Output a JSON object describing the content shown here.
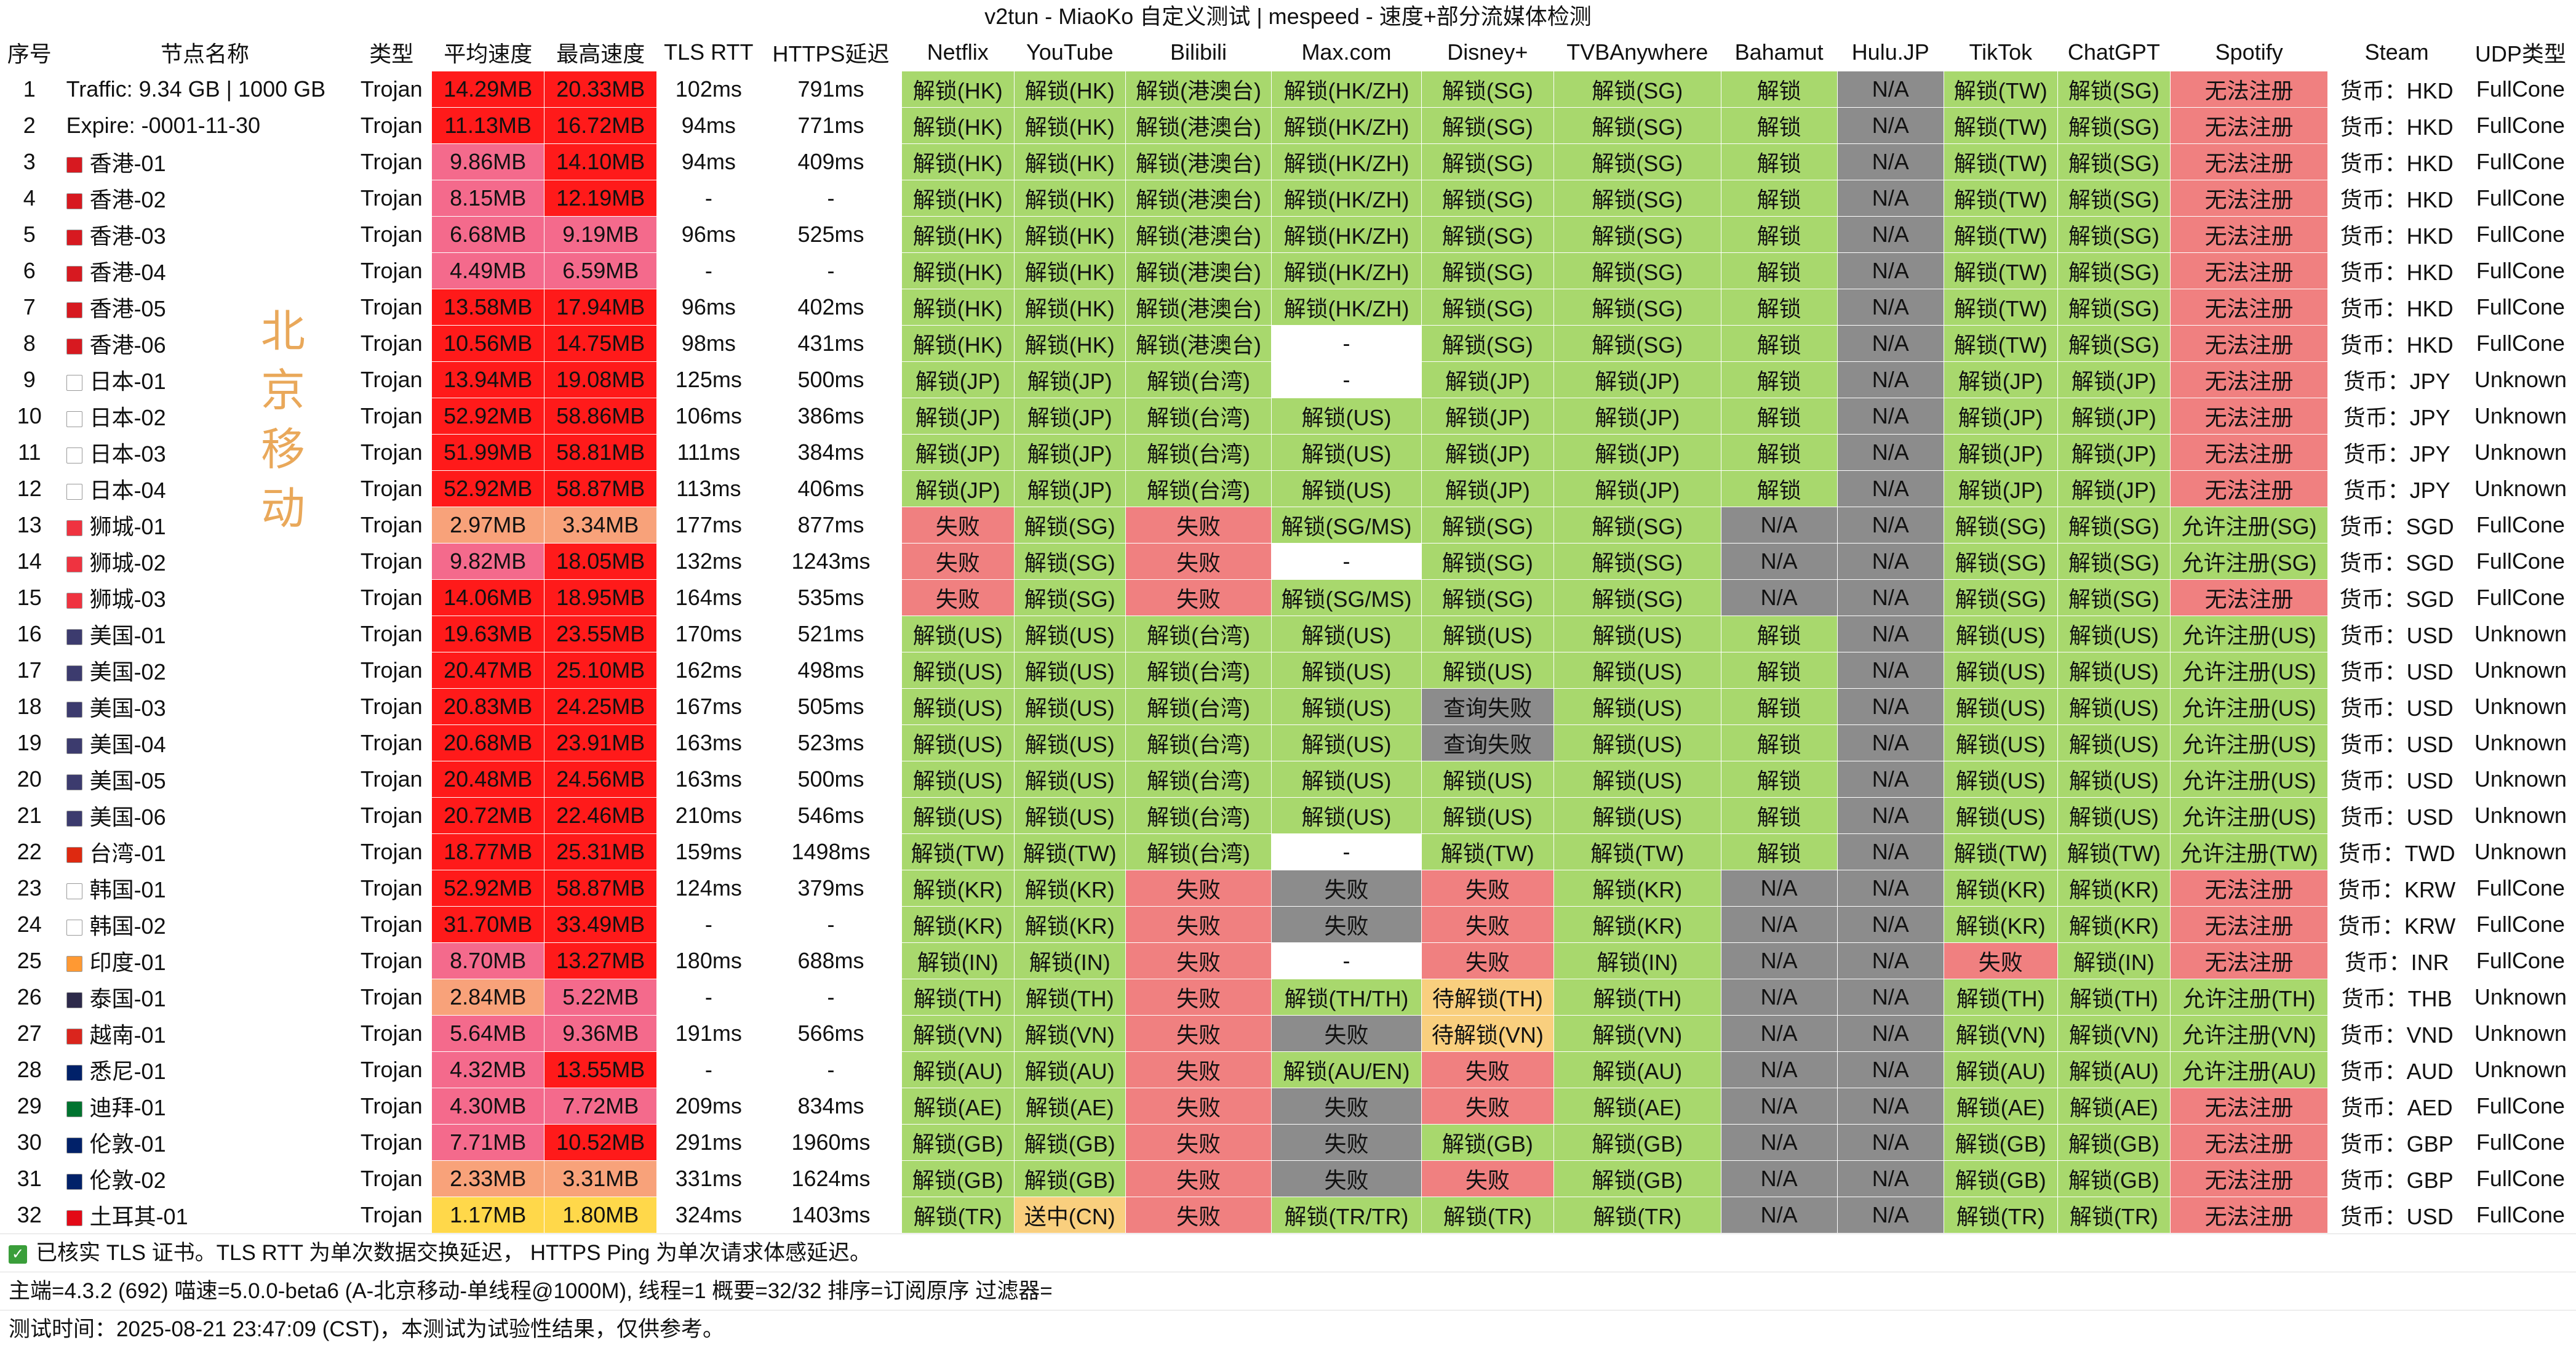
{
  "title": "v2tun - MiaoKo 自定义测试 | mespeed - 速度+部分流媒体检测",
  "columns": [
    "序号",
    "节点名称",
    "类型",
    "平均速度",
    "最高速度",
    "TLS RTT",
    "HTTPS延迟",
    "Netflix",
    "YouTube",
    "Bilibili",
    "Max.com",
    "Disney+",
    "TVBAnywhere",
    "Bahamut",
    "Hulu.JP",
    "TikTok",
    "ChatGPT",
    "Spotify",
    "Steam",
    "UDP类型"
  ],
  "overlay_text": [
    "北",
    "京",
    "移",
    "动"
  ],
  "rows": [
    [
      "1",
      "Traffic: 9.34 GB | 1000 GB",
      "Trojan",
      "14.29MB",
      "20.33MB",
      "102ms",
      "791ms",
      "解锁(HK)",
      "解锁(HK)",
      "解锁(港澳台)",
      "解锁(HK/ZH)",
      "解锁(SG)",
      "解锁(SG)",
      "解锁",
      "N/A",
      "解锁(TW)",
      "解锁(SG)",
      "无法注册",
      "货币：HKD",
      "FullCone"
    ],
    [
      "2",
      "Expire: -0001-11-30",
      "Trojan",
      "11.13MB",
      "16.72MB",
      "94ms",
      "771ms",
      "解锁(HK)",
      "解锁(HK)",
      "解锁(港澳台)",
      "解锁(HK/ZH)",
      "解锁(SG)",
      "解锁(SG)",
      "解锁",
      "N/A",
      "解锁(TW)",
      "解锁(SG)",
      "无法注册",
      "货币：HKD",
      "FullCone"
    ],
    [
      "3",
      "香港-01",
      "Trojan",
      "9.86MB",
      "14.10MB",
      "94ms",
      "409ms",
      "解锁(HK)",
      "解锁(HK)",
      "解锁(港澳台)",
      "解锁(HK/ZH)",
      "解锁(SG)",
      "解锁(SG)",
      "解锁",
      "N/A",
      "解锁(TW)",
      "解锁(SG)",
      "无法注册",
      "货币：HKD",
      "FullCone"
    ],
    [
      "4",
      "香港-02",
      "Trojan",
      "8.15MB",
      "12.19MB",
      "-",
      "-",
      "解锁(HK)",
      "解锁(HK)",
      "解锁(港澳台)",
      "解锁(HK/ZH)",
      "解锁(SG)",
      "解锁(SG)",
      "解锁",
      "N/A",
      "解锁(TW)",
      "解锁(SG)",
      "无法注册",
      "货币：HKD",
      "FullCone"
    ],
    [
      "5",
      "香港-03",
      "Trojan",
      "6.68MB",
      "9.19MB",
      "96ms",
      "525ms",
      "解锁(HK)",
      "解锁(HK)",
      "解锁(港澳台)",
      "解锁(HK/ZH)",
      "解锁(SG)",
      "解锁(SG)",
      "解锁",
      "N/A",
      "解锁(TW)",
      "解锁(SG)",
      "无法注册",
      "货币：HKD",
      "FullCone"
    ],
    [
      "6",
      "香港-04",
      "Trojan",
      "4.49MB",
      "6.59MB",
      "-",
      "-",
      "解锁(HK)",
      "解锁(HK)",
      "解锁(港澳台)",
      "解锁(HK/ZH)",
      "解锁(SG)",
      "解锁(SG)",
      "解锁",
      "N/A",
      "解锁(TW)",
      "解锁(SG)",
      "无法注册",
      "货币：HKD",
      "FullCone"
    ],
    [
      "7",
      "香港-05",
      "Trojan",
      "13.58MB",
      "17.94MB",
      "96ms",
      "402ms",
      "解锁(HK)",
      "解锁(HK)",
      "解锁(港澳台)",
      "解锁(HK/ZH)",
      "解锁(SG)",
      "解锁(SG)",
      "解锁",
      "N/A",
      "解锁(TW)",
      "解锁(SG)",
      "无法注册",
      "货币：HKD",
      "FullCone"
    ],
    [
      "8",
      "香港-06",
      "Trojan",
      "10.56MB",
      "14.75MB",
      "98ms",
      "431ms",
      "解锁(HK)",
      "解锁(HK)",
      "解锁(港澳台)",
      "-",
      "解锁(SG)",
      "解锁(SG)",
      "解锁",
      "N/A",
      "解锁(TW)",
      "解锁(SG)",
      "无法注册",
      "货币：HKD",
      "FullCone"
    ],
    [
      "9",
      "日本-01",
      "Trojan",
      "13.94MB",
      "19.08MB",
      "125ms",
      "500ms",
      "解锁(JP)",
      "解锁(JP)",
      "解锁(台湾)",
      "-",
      "解锁(JP)",
      "解锁(JP)",
      "解锁",
      "N/A",
      "解锁(JP)",
      "解锁(JP)",
      "无法注册",
      "货币：JPY",
      "Unknown"
    ],
    [
      "10",
      "日本-02",
      "Trojan",
      "52.92MB",
      "58.86MB",
      "106ms",
      "386ms",
      "解锁(JP)",
      "解锁(JP)",
      "解锁(台湾)",
      "解锁(US)",
      "解锁(JP)",
      "解锁(JP)",
      "解锁",
      "N/A",
      "解锁(JP)",
      "解锁(JP)",
      "无法注册",
      "货币：JPY",
      "Unknown"
    ],
    [
      "11",
      "日本-03",
      "Trojan",
      "51.99MB",
      "58.81MB",
      "111ms",
      "384ms",
      "解锁(JP)",
      "解锁(JP)",
      "解锁(台湾)",
      "解锁(US)",
      "解锁(JP)",
      "解锁(JP)",
      "解锁",
      "N/A",
      "解锁(JP)",
      "解锁(JP)",
      "无法注册",
      "货币：JPY",
      "Unknown"
    ],
    [
      "12",
      "日本-04",
      "Trojan",
      "52.92MB",
      "58.87MB",
      "113ms",
      "406ms",
      "解锁(JP)",
      "解锁(JP)",
      "解锁(台湾)",
      "解锁(US)",
      "解锁(JP)",
      "解锁(JP)",
      "解锁",
      "N/A",
      "解锁(JP)",
      "解锁(JP)",
      "无法注册",
      "货币：JPY",
      "Unknown"
    ],
    [
      "13",
      "狮城-01",
      "Trojan",
      "2.97MB",
      "3.34MB",
      "177ms",
      "877ms",
      "失败",
      "解锁(SG)",
      "失败",
      "解锁(SG/MS)",
      "解锁(SG)",
      "解锁(SG)",
      "N/A",
      "N/A",
      "解锁(SG)",
      "解锁(SG)",
      "允许注册(SG)",
      "货币：SGD",
      "FullCone"
    ],
    [
      "14",
      "狮城-02",
      "Trojan",
      "9.82MB",
      "18.05MB",
      "132ms",
      "1243ms",
      "失败",
      "解锁(SG)",
      "失败",
      "-",
      "解锁(SG)",
      "解锁(SG)",
      "N/A",
      "N/A",
      "解锁(SG)",
      "解锁(SG)",
      "允许注册(SG)",
      "货币：SGD",
      "FullCone"
    ],
    [
      "15",
      "狮城-03",
      "Trojan",
      "14.06MB",
      "18.95MB",
      "164ms",
      "535ms",
      "失败",
      "解锁(SG)",
      "失败",
      "解锁(SG/MS)",
      "解锁(SG)",
      "解锁(SG)",
      "N/A",
      "N/A",
      "解锁(SG)",
      "解锁(SG)",
      "无法注册",
      "货币：SGD",
      "FullCone"
    ],
    [
      "16",
      "美国-01",
      "Trojan",
      "19.63MB",
      "23.55MB",
      "170ms",
      "521ms",
      "解锁(US)",
      "解锁(US)",
      "解锁(台湾)",
      "解锁(US)",
      "解锁(US)",
      "解锁(US)",
      "解锁",
      "N/A",
      "解锁(US)",
      "解锁(US)",
      "允许注册(US)",
      "货币：USD",
      "Unknown"
    ],
    [
      "17",
      "美国-02",
      "Trojan",
      "20.47MB",
      "25.10MB",
      "162ms",
      "498ms",
      "解锁(US)",
      "解锁(US)",
      "解锁(台湾)",
      "解锁(US)",
      "解锁(US)",
      "解锁(US)",
      "解锁",
      "N/A",
      "解锁(US)",
      "解锁(US)",
      "允许注册(US)",
      "货币：USD",
      "Unknown"
    ],
    [
      "18",
      "美国-03",
      "Trojan",
      "20.83MB",
      "24.25MB",
      "167ms",
      "505ms",
      "解锁(US)",
      "解锁(US)",
      "解锁(台湾)",
      "解锁(US)",
      "查询失败",
      "解锁(US)",
      "解锁",
      "N/A",
      "解锁(US)",
      "解锁(US)",
      "允许注册(US)",
      "货币：USD",
      "Unknown"
    ],
    [
      "19",
      "美国-04",
      "Trojan",
      "20.68MB",
      "23.91MB",
      "163ms",
      "523ms",
      "解锁(US)",
      "解锁(US)",
      "解锁(台湾)",
      "解锁(US)",
      "查询失败",
      "解锁(US)",
      "解锁",
      "N/A",
      "解锁(US)",
      "解锁(US)",
      "允许注册(US)",
      "货币：USD",
      "Unknown"
    ],
    [
      "20",
      "美国-05",
      "Trojan",
      "20.48MB",
      "24.56MB",
      "163ms",
      "500ms",
      "解锁(US)",
      "解锁(US)",
      "解锁(台湾)",
      "解锁(US)",
      "解锁(US)",
      "解锁(US)",
      "解锁",
      "N/A",
      "解锁(US)",
      "解锁(US)",
      "允许注册(US)",
      "货币：USD",
      "Unknown"
    ],
    [
      "21",
      "美国-06",
      "Trojan",
      "20.72MB",
      "22.46MB",
      "210ms",
      "546ms",
      "解锁(US)",
      "解锁(US)",
      "解锁(台湾)",
      "解锁(US)",
      "解锁(US)",
      "解锁(US)",
      "解锁",
      "N/A",
      "解锁(US)",
      "解锁(US)",
      "允许注册(US)",
      "货币：USD",
      "Unknown"
    ],
    [
      "22",
      "台湾-01",
      "Trojan",
      "18.77MB",
      "25.31MB",
      "159ms",
      "1498ms",
      "解锁(TW)",
      "解锁(TW)",
      "解锁(台湾)",
      "-",
      "解锁(TW)",
      "解锁(TW)",
      "解锁",
      "N/A",
      "解锁(TW)",
      "解锁(TW)",
      "允许注册(TW)",
      "货币：TWD",
      "Unknown"
    ],
    [
      "23",
      "韩国-01",
      "Trojan",
      "52.92MB",
      "58.87MB",
      "124ms",
      "379ms",
      "解锁(KR)",
      "解锁(KR)",
      "失败",
      "失败",
      "失败",
      "解锁(KR)",
      "N/A",
      "N/A",
      "解锁(KR)",
      "解锁(KR)",
      "无法注册",
      "货币：KRW",
      "FullCone"
    ],
    [
      "24",
      "韩国-02",
      "Trojan",
      "31.70MB",
      "33.49MB",
      "-",
      "-",
      "解锁(KR)",
      "解锁(KR)",
      "失败",
      "失败",
      "失败",
      "解锁(KR)",
      "N/A",
      "N/A",
      "解锁(KR)",
      "解锁(KR)",
      "无法注册",
      "货币：KRW",
      "FullCone"
    ],
    [
      "25",
      "印度-01",
      "Trojan",
      "8.70MB",
      "13.27MB",
      "180ms",
      "688ms",
      "解锁(IN)",
      "解锁(IN)",
      "失败",
      "-",
      "失败",
      "解锁(IN)",
      "N/A",
      "N/A",
      "失败",
      "解锁(IN)",
      "无法注册",
      "货币：INR",
      "FullCone"
    ],
    [
      "26",
      "泰国-01",
      "Trojan",
      "2.84MB",
      "5.22MB",
      "-",
      "-",
      "解锁(TH)",
      "解锁(TH)",
      "失败",
      "解锁(TH/TH)",
      "待解锁(TH)",
      "解锁(TH)",
      "N/A",
      "N/A",
      "解锁(TH)",
      "解锁(TH)",
      "允许注册(TH)",
      "货币：THB",
      "Unknown"
    ],
    [
      "27",
      "越南-01",
      "Trojan",
      "5.64MB",
      "9.36MB",
      "191ms",
      "566ms",
      "解锁(VN)",
      "解锁(VN)",
      "失败",
      "失败",
      "待解锁(VN)",
      "解锁(VN)",
      "N/A",
      "N/A",
      "解锁(VN)",
      "解锁(VN)",
      "允许注册(VN)",
      "货币：VND",
      "Unknown"
    ],
    [
      "28",
      "悉尼-01",
      "Trojan",
      "4.32MB",
      "13.55MB",
      "-",
      "-",
      "解锁(AU)",
      "解锁(AU)",
      "失败",
      "解锁(AU/EN)",
      "失败",
      "解锁(AU)",
      "N/A",
      "N/A",
      "解锁(AU)",
      "解锁(AU)",
      "允许注册(AU)",
      "货币：AUD",
      "Unknown"
    ],
    [
      "29",
      "迪拜-01",
      "Trojan",
      "4.30MB",
      "7.72MB",
      "209ms",
      "834ms",
      "解锁(AE)",
      "解锁(AE)",
      "失败",
      "失败",
      "失败",
      "解锁(AE)",
      "N/A",
      "N/A",
      "解锁(AE)",
      "解锁(AE)",
      "无法注册",
      "货币：AED",
      "FullCone"
    ],
    [
      "30",
      "伦敦-01",
      "Trojan",
      "7.71MB",
      "10.52MB",
      "291ms",
      "1960ms",
      "解锁(GB)",
      "解锁(GB)",
      "失败",
      "失败",
      "解锁(GB)",
      "解锁(GB)",
      "N/A",
      "N/A",
      "解锁(GB)",
      "解锁(GB)",
      "无法注册",
      "货币：GBP",
      "FullCone"
    ],
    [
      "31",
      "伦敦-02",
      "Trojan",
      "2.33MB",
      "3.31MB",
      "331ms",
      "1624ms",
      "解锁(GB)",
      "解锁(GB)",
      "失败",
      "失败",
      "失败",
      "解锁(GB)",
      "N/A",
      "N/A",
      "解锁(GB)",
      "解锁(GB)",
      "无法注册",
      "货币：GBP",
      "FullCone"
    ],
    [
      "32",
      "土耳其-01",
      "Trojan",
      "1.17MB",
      "1.80MB",
      "324ms",
      "1403ms",
      "解锁(TR)",
      "送中(CN)",
      "失败",
      "解锁(TR/TR)",
      "解锁(TR)",
      "解锁(TR)",
      "N/A",
      "N/A",
      "解锁(TR)",
      "解锁(TR)",
      "无法注册",
      "货币：USD",
      "FullCone"
    ]
  ],
  "row_flags": [
    "",
    "",
    "#d71920",
    "#d71920",
    "#d71920",
    "#d71920",
    "#d71920",
    "#d71920",
    "#ffffff",
    "#ffffff",
    "#ffffff",
    "#ffffff",
    "#ef3340",
    "#ef3340",
    "#ef3340",
    "#3c3b6e",
    "#3c3b6e",
    "#3c3b6e",
    "#3c3b6e",
    "#3c3b6e",
    "#3c3b6e",
    "#de2910",
    "#ffffff",
    "#ffffff",
    "#ff9933",
    "#2d2a4a",
    "#da251d",
    "#012169",
    "#00732f",
    "#012169",
    "#012169",
    "#e30a17"
  ],
  "footer": {
    "line1": "已核实 TLS 证书。TLS RTT 为单次数据交换延迟， HTTPS Ping 为单次请求体感延迟。",
    "line2": "主端=4.3.2 (692) 喵速=5.0.0-beta6 (A-北京移动-单线程@1000M), 线程=1 概要=32/32 排序=订阅原序 过滤器=",
    "line3": "测试时间：2025-08-21 23:47:09 (CST)，本测试为试验性结果，仅供参考。"
  },
  "colors": {
    "ok": "#a8d86d",
    "na": "#8c8c8c",
    "fail": "#f08080",
    "pending": "#f9cf7e",
    "overlay": "#e9a85a"
  }
}
